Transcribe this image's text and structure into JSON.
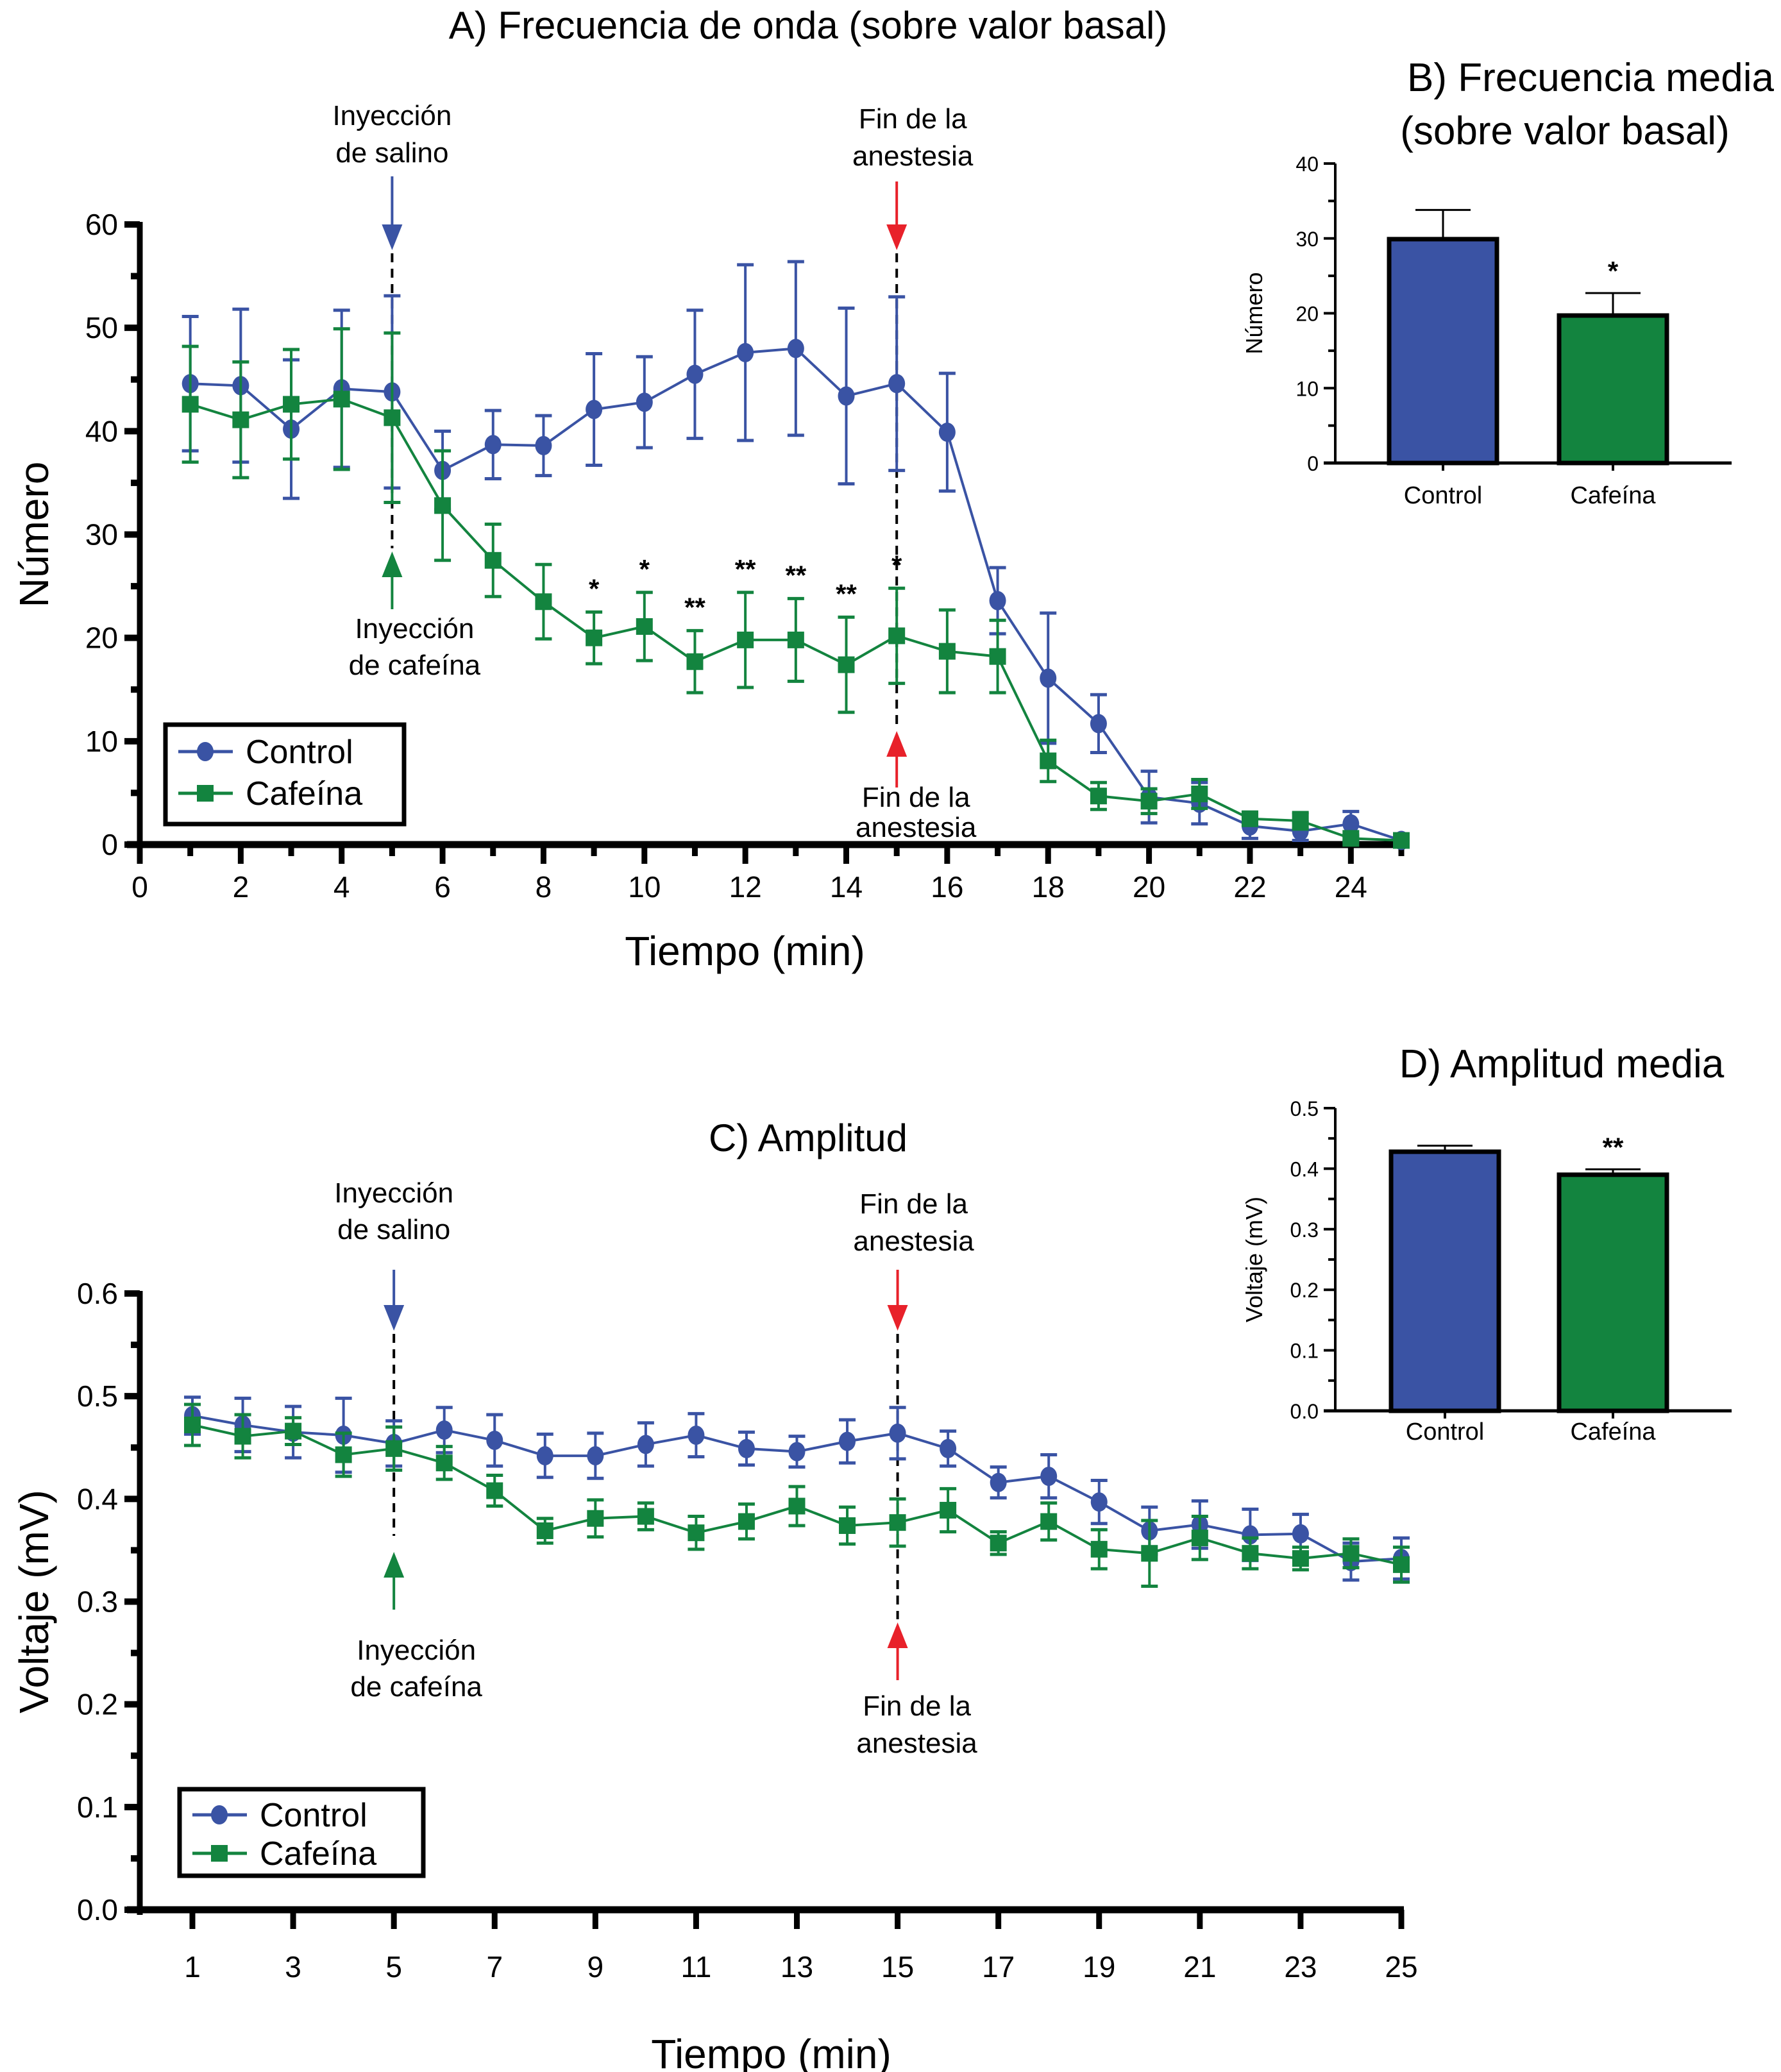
{
  "colors": {
    "control": "#3a53a4",
    "cafeina": "#13843f",
    "anesthesia_arrow": "#e8212a",
    "axis": "#000000"
  },
  "chart_data": [
    {
      "id": "A",
      "type": "line",
      "title": "A) Frecuencia de onda (sobre valor basal)",
      "xlabel": "Tiempo (min)",
      "ylabel": "Número",
      "xlim": [
        0,
        25
      ],
      "ylim": [
        0,
        60
      ],
      "x_ticks": [
        0,
        2,
        4,
        6,
        8,
        10,
        12,
        14,
        16,
        18,
        20,
        22,
        24
      ],
      "y_ticks": [
        0,
        10,
        20,
        30,
        40,
        50,
        60
      ],
      "grid": false,
      "legend_position": "bottom-left",
      "x": [
        1,
        2,
        3,
        4,
        5,
        6,
        7,
        8,
        9,
        10,
        11,
        12,
        13,
        14,
        15,
        16,
        17,
        18,
        19,
        20,
        21,
        22,
        23,
        24,
        25
      ],
      "series": [
        {
          "name": "Control",
          "marker": "circle",
          "values": [
            44.6,
            44.4,
            40.2,
            44.1,
            43.8,
            36.2,
            38.7,
            38.6,
            42.1,
            42.8,
            45.5,
            47.6,
            48.0,
            43.4,
            44.6,
            39.9,
            23.6,
            16.1,
            11.7,
            4.6,
            4.0,
            1.8,
            1.3,
            2.0,
            0.4
          ],
          "error": [
            6.5,
            7.4,
            6.7,
            7.6,
            9.3,
            3.8,
            3.3,
            2.9,
            5.4,
            4.4,
            6.2,
            8.5,
            8.4,
            8.5,
            8.4,
            5.7,
            3.2,
            6.3,
            2.8,
            2.5,
            2.0,
            1.2,
            0.9,
            1.2,
            0.3
          ]
        },
        {
          "name": "Cafeína",
          "marker": "square",
          "values": [
            42.6,
            41.1,
            42.6,
            43.1,
            41.3,
            32.8,
            27.5,
            23.5,
            20.0,
            21.1,
            17.7,
            19.8,
            19.8,
            17.4,
            20.2,
            18.7,
            18.2,
            8.1,
            4.7,
            4.2,
            4.9,
            2.5,
            2.3,
            0.6,
            0.4
          ],
          "error": [
            5.6,
            5.6,
            5.3,
            6.8,
            8.2,
            5.3,
            3.5,
            3.6,
            2.5,
            3.3,
            3.0,
            4.6,
            4.0,
            4.6,
            4.6,
            4.0,
            3.5,
            2.0,
            1.3,
            1.2,
            1.4,
            0.6,
            0.8,
            0.3,
            0.3
          ]
        }
      ],
      "significance": [
        {
          "x": 9,
          "label": "*"
        },
        {
          "x": 10,
          "label": "*"
        },
        {
          "x": 11,
          "label": "**"
        },
        {
          "x": 12,
          "label": "**"
        },
        {
          "x": 13,
          "label": "**"
        },
        {
          "x": 14,
          "label": "**"
        },
        {
          "x": 15,
          "label": "*"
        }
      ],
      "annotations": [
        {
          "x": 5,
          "lines": [
            "Inyección",
            "de salino"
          ],
          "arrow": "down",
          "color": "control"
        },
        {
          "x": 5,
          "lines": [
            "Inyección",
            "de cafeína"
          ],
          "arrow": "up",
          "color": "cafeina"
        },
        {
          "x": 15,
          "lines": [
            "Fin de la",
            "anestesia"
          ],
          "arrow": "down",
          "color": "anesthesia_arrow"
        },
        {
          "x": 15,
          "lines": [
            "Fin de la",
            "anestesia"
          ],
          "arrow": "up",
          "color": "anesthesia_arrow"
        }
      ]
    },
    {
      "id": "B",
      "type": "bar",
      "title": [
        "B) Frecuencia media",
        "(sobre valor basal)"
      ],
      "xlabel": "",
      "ylabel": "Número",
      "ylim": [
        0,
        40
      ],
      "y_ticks": [
        0,
        10,
        20,
        30,
        40
      ],
      "categories": [
        "Control",
        "Cafeína"
      ],
      "values": [
        29.9,
        19.7
      ],
      "error": [
        3.9,
        3.0
      ],
      "significance": [
        "",
        "*"
      ]
    },
    {
      "id": "C",
      "type": "line",
      "title": "C) Amplitud",
      "xlabel": "Tiempo (min)",
      "ylabel": "Voltaje (mV)",
      "xlim": [
        1,
        25
      ],
      "ylim": [
        0,
        0.6
      ],
      "x_ticks": [
        1,
        3,
        5,
        7,
        9,
        11,
        13,
        15,
        17,
        19,
        21,
        23,
        25
      ],
      "y_ticks": [
        0.0,
        0.1,
        0.2,
        0.3,
        0.4,
        0.5,
        0.6
      ],
      "grid": false,
      "legend_position": "bottom-left",
      "x": [
        1,
        2,
        3,
        4,
        5,
        6,
        7,
        8,
        9,
        10,
        11,
        12,
        13,
        14,
        15,
        16,
        17,
        18,
        19,
        20,
        21,
        22,
        23,
        24,
        25
      ],
      "series": [
        {
          "name": "Control",
          "marker": "circle",
          "values": [
            0.481,
            0.472,
            0.465,
            0.462,
            0.454,
            0.467,
            0.457,
            0.442,
            0.442,
            0.453,
            0.462,
            0.449,
            0.446,
            0.456,
            0.464,
            0.449,
            0.416,
            0.422,
            0.397,
            0.369,
            0.375,
            0.365,
            0.366,
            0.339,
            0.342
          ],
          "error": [
            0.018,
            0.026,
            0.025,
            0.036,
            0.022,
            0.022,
            0.025,
            0.021,
            0.022,
            0.021,
            0.021,
            0.016,
            0.015,
            0.021,
            0.025,
            0.017,
            0.015,
            0.021,
            0.021,
            0.023,
            0.023,
            0.025,
            0.019,
            0.018,
            0.02
          ]
        },
        {
          "name": "Cafeína",
          "marker": "square",
          "values": [
            0.472,
            0.461,
            0.466,
            0.443,
            0.449,
            0.435,
            0.408,
            0.369,
            0.381,
            0.383,
            0.367,
            0.378,
            0.393,
            0.374,
            0.377,
            0.389,
            0.357,
            0.378,
            0.351,
            0.347,
            0.362,
            0.347,
            0.342,
            0.347,
            0.336
          ],
          "error": [
            0.02,
            0.021,
            0.013,
            0.021,
            0.021,
            0.016,
            0.015,
            0.012,
            0.018,
            0.013,
            0.016,
            0.017,
            0.019,
            0.018,
            0.023,
            0.021,
            0.011,
            0.018,
            0.019,
            0.032,
            0.021,
            0.015,
            0.011,
            0.014,
            0.017
          ]
        }
      ],
      "annotations": [
        {
          "x": 5,
          "lines": [
            "Inyección",
            "de salino"
          ],
          "arrow": "down",
          "color": "control"
        },
        {
          "x": 5,
          "lines": [
            "Inyección",
            "de cafeína"
          ],
          "arrow": "up",
          "color": "cafeina"
        },
        {
          "x": 15,
          "lines": [
            "Fin de la",
            "anestesia"
          ],
          "arrow": "down",
          "color": "anesthesia_arrow"
        },
        {
          "x": 15,
          "lines": [
            "Fin de la",
            "anestesia"
          ],
          "arrow": "up",
          "color": "anesthesia_arrow"
        }
      ]
    },
    {
      "id": "D",
      "type": "bar",
      "title": "D) Amplitud media",
      "xlabel": "",
      "ylabel": "Voltaje (mV)",
      "ylim": [
        0,
        0.5
      ],
      "y_ticks": [
        0.0,
        0.1,
        0.2,
        0.3,
        0.4,
        0.5
      ],
      "categories": [
        "Control",
        "Cafeína"
      ],
      "values": [
        0.428,
        0.39
      ],
      "error": [
        0.01,
        0.009
      ],
      "significance": [
        "",
        "**"
      ]
    }
  ]
}
